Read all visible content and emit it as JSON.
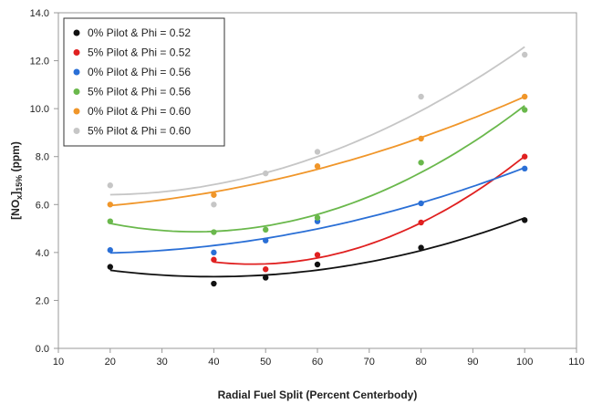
{
  "chart_data": {
    "type": "scatter",
    "title": "",
    "xlabel": "Radial Fuel Split (Percent Centerbody)",
    "ylabel": "[NOx]15% (ppm)",
    "ylabel_parts": {
      "a": "[NO",
      "sub": "x",
      "b": "]",
      "sub2": "15%",
      "c": " (ppm)"
    },
    "xlim": [
      10,
      110
    ],
    "ylim": [
      0,
      14
    ],
    "xticks": [
      "10",
      "20",
      "30",
      "40",
      "50",
      "60",
      "70",
      "80",
      "90",
      "100",
      "110"
    ],
    "yticks": [
      "0.0",
      "2.0",
      "4.0",
      "6.0",
      "8.0",
      "10.0",
      "12.0",
      "14.0"
    ],
    "grid": false,
    "legend_position": "top-left",
    "trendlines": "polynomial fit per series",
    "series": [
      {
        "name": "0% Pilot & Phi = 0.52",
        "color": "#111111",
        "x": [
          20,
          40,
          50,
          60,
          80,
          100
        ],
        "y": [
          3.4,
          2.7,
          2.95,
          3.5,
          4.2,
          5.35
        ]
      },
      {
        "name": "5% Pilot & Phi = 0.52",
        "color": "#e02020",
        "x": [
          40,
          50,
          60,
          80,
          100
        ],
        "y": [
          3.7,
          3.3,
          3.9,
          5.25,
          8.0
        ]
      },
      {
        "name": "0% Pilot & Phi = 0.56",
        "color": "#2a6fd6",
        "x": [
          20,
          40,
          50,
          60,
          80,
          100
        ],
        "y": [
          4.1,
          4.0,
          4.5,
          5.3,
          6.05,
          7.5
        ]
      },
      {
        "name": "5% Pilot & Phi = 0.56",
        "color": "#6ab84c",
        "x": [
          20,
          40,
          50,
          60,
          80,
          100
        ],
        "y": [
          5.3,
          4.85,
          4.95,
          5.45,
          7.75,
          9.95
        ]
      },
      {
        "name": "0% Pilot & Phi = 0.60",
        "color": "#f0962a",
        "x": [
          20,
          40,
          60,
          80,
          100
        ],
        "y": [
          6.0,
          6.4,
          7.6,
          8.75,
          10.5
        ]
      },
      {
        "name": "5% Pilot & Phi = 0.60",
        "color": "#c6c6c6",
        "x": [
          20,
          40,
          50,
          60,
          80,
          100
        ],
        "y": [
          6.8,
          6.0,
          7.3,
          8.2,
          10.5,
          12.25
        ]
      }
    ]
  }
}
